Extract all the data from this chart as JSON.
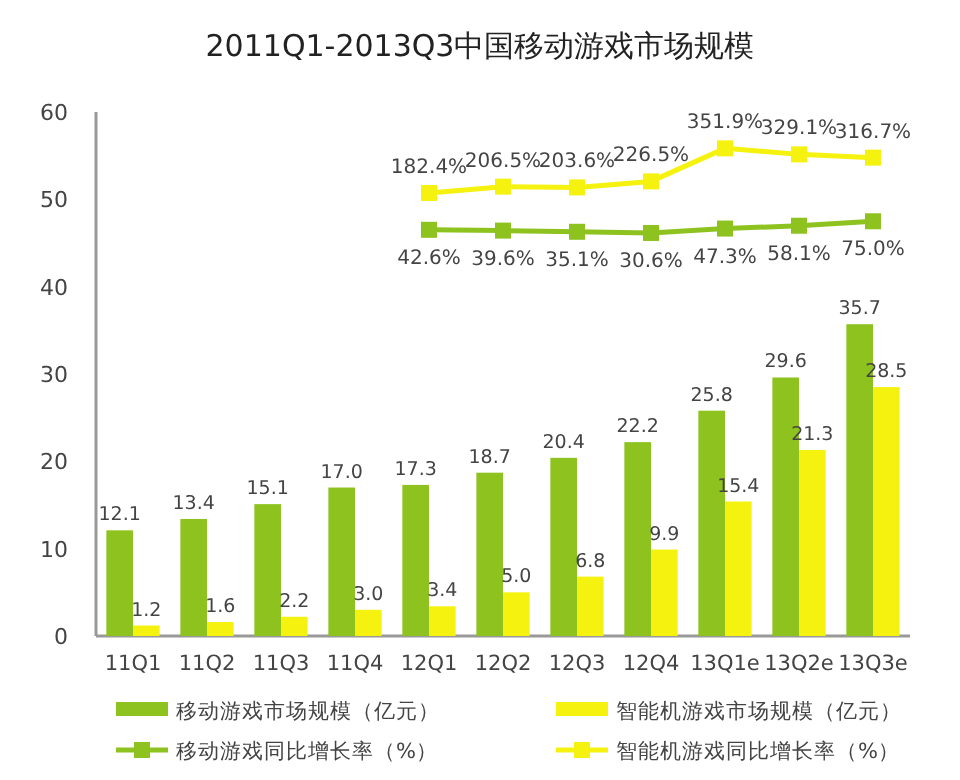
{
  "chart_data": {
    "type": "bar",
    "title": "2011Q1-2013Q3中国移动游戏市场规模",
    "categories": [
      "11Q1",
      "11Q2",
      "11Q3",
      "11Q4",
      "12Q1",
      "12Q2",
      "12Q3",
      "12Q4",
      "13Q1e",
      "13Q2e",
      "13Q3e"
    ],
    "series": [
      {
        "name": "移动游戏市场规模（亿元）",
        "color": "#8dc21f",
        "values": [
          12.1,
          13.4,
          15.1,
          17.0,
          17.3,
          18.7,
          20.4,
          22.2,
          25.8,
          29.6,
          35.7
        ],
        "value_labels": [
          "12.1",
          "13.4",
          "15.1",
          "17.0",
          "17.3",
          "18.7",
          "20.4",
          "22.2",
          "25.8",
          "29.6",
          "35.7"
        ]
      },
      {
        "name": "智能机游戏市场规模（亿元）",
        "color": "#f5f20f",
        "values": [
          1.2,
          1.6,
          2.2,
          3.0,
          3.4,
          5.0,
          6.8,
          9.9,
          15.4,
          21.3,
          28.5
        ],
        "value_labels": [
          "1.2",
          "1.6",
          "2.2",
          "3.0",
          "3.4",
          "5.0",
          "6.8",
          "9.9",
          "15.4",
          "21.3",
          "28.5"
        ]
      },
      {
        "name": "移动游戏同比增长率（%）",
        "type": "line",
        "axis": "y2",
        "color": "#8dc21f",
        "values": [
          null,
          null,
          null,
          null,
          42.6,
          39.6,
          35.1,
          30.6,
          47.3,
          58.1,
          75.0
        ],
        "value_labels": [
          null,
          null,
          null,
          null,
          "42.6%",
          "39.6%",
          "35.1%",
          "30.6%",
          "47.3%",
          "58.1%",
          "75.0%"
        ]
      },
      {
        "name": "智能机游戏同比增长率（%）",
        "type": "line",
        "axis": "y2",
        "color": "#f5f20f",
        "values": [
          null,
          null,
          null,
          null,
          182.4,
          206.5,
          203.6,
          226.5,
          351.9,
          329.1,
          316.7
        ],
        "value_labels": [
          null,
          null,
          null,
          null,
          "182.4%",
          "206.5%",
          "203.6%",
          "226.5%",
          "351.9%",
          "329.1%",
          "316.7%"
        ]
      }
    ],
    "ylim": [
      0,
      60
    ],
    "yticks": [
      0,
      10,
      20,
      30,
      40,
      50,
      60
    ],
    "y2lim": [
      -1500,
      490
    ],
    "tick_labels": [
      "x",
      "y"
    ],
    "marker": "square",
    "legend": "bottom",
    "grid": false
  }
}
